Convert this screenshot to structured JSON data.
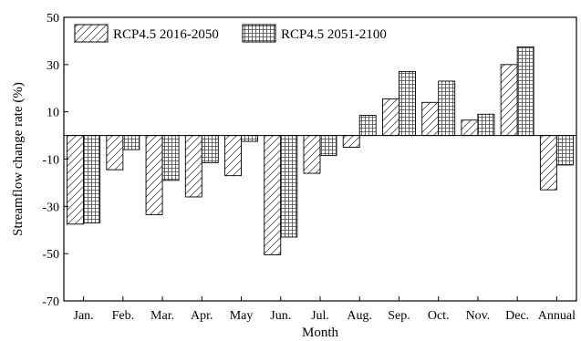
{
  "chart_data": {
    "type": "bar",
    "xlabel": "Month",
    "ylabel": "Streamflow change rate (%)",
    "ylim": [
      -70,
      50
    ],
    "yticks": [
      -70,
      -50,
      -30,
      -10,
      10,
      30,
      50
    ],
    "grid": false,
    "legend_position": "top-left",
    "categories": [
      "Jan.",
      "Feb.",
      "Mar.",
      "Apr.",
      "May",
      "Jun.",
      "Jul.",
      "Aug.",
      "Sep.",
      "Oct.",
      "Nov.",
      "Dec.",
      "Annual"
    ],
    "series": [
      {
        "name": "RCP4.5 2016-2050",
        "pattern": "diagonal-hatch",
        "values": [
          -37.5,
          -14.5,
          -33.5,
          -26,
          -17,
          -50.5,
          -16,
          -5,
          15.5,
          14,
          6.5,
          30,
          -23
        ]
      },
      {
        "name": "RCP4.5 2051-2100",
        "pattern": "grid-hatch",
        "values": [
          -37,
          -6,
          -19,
          -11.5,
          -2.5,
          -43,
          -8.5,
          8.5,
          27,
          23,
          9,
          37.5,
          -12.5
        ]
      }
    ]
  }
}
